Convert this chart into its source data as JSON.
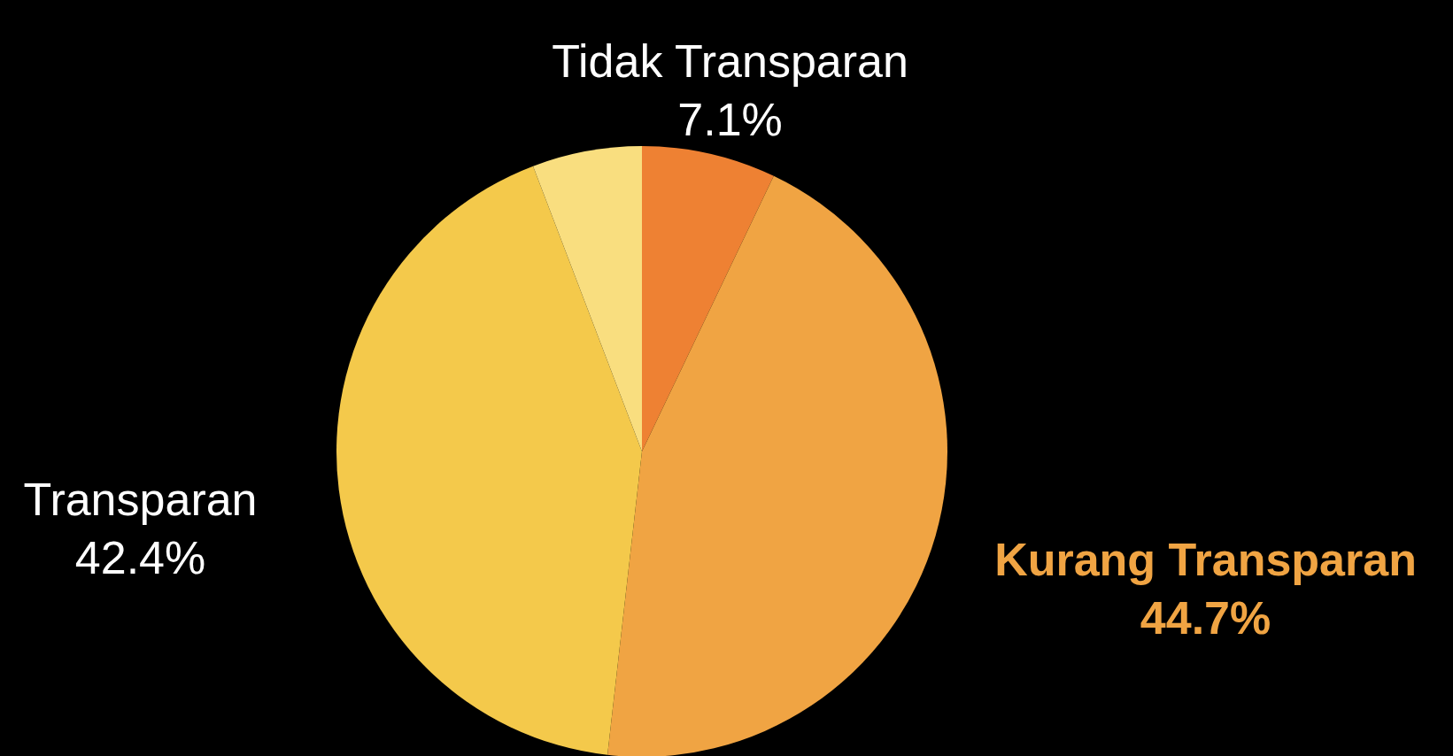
{
  "chart_data": {
    "type": "pie",
    "categories": [
      "Tidak Transparan",
      "Kurang Transparan",
      "Transparan",
      null
    ],
    "values": [
      7.1,
      44.7,
      42.4,
      5.8
    ],
    "value_labels": [
      "7.1%",
      "44.7%",
      "42.4%",
      null
    ],
    "colors": [
      "#ee8133",
      "#f0a443",
      "#f4c94b",
      "#f9de7f"
    ]
  }
}
